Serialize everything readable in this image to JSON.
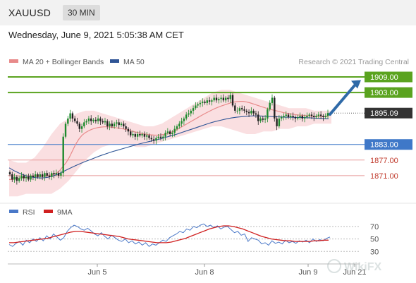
{
  "header": {
    "symbol": "XAUUSD",
    "timeframe": "30 MIN",
    "datetime": "Wednesday, June 9, 2021 5:05:38 AM CET"
  },
  "colors": {
    "ma20": "#e88a8a",
    "ma50": "#2f5596",
    "band_fill": "#f9d9dc",
    "resistance": "#5aa31f",
    "support": "#3f78c8",
    "minor_support": "#e89a9a",
    "arrow": "#2f6aa8",
    "rsi": "#4a78c8",
    "rsi_ma": "#d02020",
    "candle_up": "#1d8a2c",
    "candle_down": "#222222"
  },
  "chart_data": [
    {
      "type": "candlestick",
      "legend": [
        {
          "key": "ma20",
          "label": "MA 20 + Bollinger Bands"
        },
        {
          "key": "ma50",
          "label": "MA 50"
        }
      ],
      "source": "Research © 2021 Trading Central",
      "ylim": [
        1862,
        1912
      ],
      "current_price": {
        "label": "1895.09",
        "value": 1895.09
      },
      "levels": [
        {
          "label": "1909.00",
          "value": 1909.0,
          "kind": "resistance"
        },
        {
          "label": "1903.00",
          "value": 1903.0,
          "kind": "resistance"
        },
        {
          "label": "1883.00",
          "value": 1883.0,
          "kind": "support"
        },
        {
          "label": "1877.00",
          "value": 1877.0,
          "kind": "minor_support"
        },
        {
          "label": "1871.00",
          "value": 1871.0,
          "kind": "minor_support"
        }
      ],
      "close": [
        1871.5,
        1869.5,
        1870.5,
        1869.0,
        1870.0,
        1871.0,
        1870.0,
        1870.5,
        1869.5,
        1871.0,
        1870.5,
        1871.5,
        1870.5,
        1871.5,
        1870.5,
        1872.0,
        1871.0,
        1870.5,
        1872.0,
        1871.5,
        1872.0,
        1871.0,
        1872.0,
        1886.0,
        1891.0,
        1893.0,
        1895.0,
        1893.0,
        1892.0,
        1891.0,
        1889.0,
        1890.0,
        1891.5,
        1892.0,
        1893.0,
        1892.0,
        1892.5,
        1892.0,
        1893.0,
        1892.0,
        1891.5,
        1892.0,
        1890.0,
        1891.0,
        1890.0,
        1891.0,
        1891.5,
        1890.5,
        1891.0,
        1890.0,
        1889.0,
        1888.0,
        1886.5,
        1887.0,
        1886.0,
        1887.0,
        1886.5,
        1887.0,
        1886.0,
        1886.5,
        1885.5,
        1885.0,
        1884.5,
        1885.5,
        1886.0,
        1885.5,
        1886.0,
        1887.5,
        1888.0,
        1887.0,
        1887.5,
        1889.0,
        1890.0,
        1891.0,
        1892.0,
        1893.0,
        1894.5,
        1895.0,
        1896.0,
        1897.0,
        1898.0,
        1898.5,
        1899.0,
        1899.5,
        1899.0,
        1900.0,
        1899.5,
        1900.0,
        1901.0,
        1900.0,
        1900.5,
        1901.0,
        1900.0,
        1901.0,
        1900.5,
        1902.0,
        1898.0,
        1896.0,
        1896.0,
        1897.0,
        1896.5,
        1896.0,
        1895.5,
        1895.0,
        1896.0,
        1895.0,
        1894.5,
        1892.0,
        1893.0,
        1892.5,
        1893.0,
        1896.5,
        1899.0,
        1901.0,
        1893.0,
        1890.0,
        1893.0,
        1893.5,
        1894.0,
        1894.5,
        1893.5,
        1894.0,
        1893.5,
        1893.0,
        1893.5,
        1894.0,
        1893.0,
        1893.5,
        1894.0,
        1894.5,
        1894.0,
        1893.5,
        1894.0,
        1894.5,
        1894.0,
        1893.5,
        1894.0,
        1895.09
      ],
      "ma20": [
        1869.5,
        1869.5,
        1869.8,
        1870.0,
        1870.2,
        1870.3,
        1870.4,
        1870.5,
        1870.6,
        1870.7,
        1870.8,
        1870.9,
        1871.0,
        1871.2,
        1871.5,
        1872.0,
        1873.0,
        1874.5,
        1876.0,
        1878.0,
        1880.5,
        1883.0,
        1885.0,
        1886.5,
        1887.5,
        1888.2,
        1888.8,
        1889.2,
        1889.5,
        1889.7,
        1889.8,
        1889.8,
        1889.7,
        1889.6,
        1889.4,
        1889.2,
        1889.0,
        1888.7,
        1888.4,
        1888.1,
        1887.8,
        1887.5,
        1887.2,
        1887.0,
        1886.8,
        1886.7,
        1886.6,
        1886.6,
        1886.7,
        1886.9,
        1887.2,
        1887.6,
        1888.1,
        1888.7,
        1889.4,
        1890.1,
        1890.8,
        1891.5,
        1892.2,
        1892.9,
        1893.6,
        1894.3,
        1895.0,
        1895.6,
        1896.2,
        1896.8,
        1897.3,
        1897.8,
        1898.2,
        1898.6,
        1899.0,
        1899.3,
        1899.5,
        1899.6,
        1899.6,
        1899.4,
        1899.1,
        1898.7,
        1898.3,
        1897.9,
        1897.5,
        1897.1,
        1896.7,
        1896.4,
        1896.1,
        1895.8,
        1895.5,
        1895.2,
        1895.0,
        1894.8,
        1894.6,
        1894.4,
        1894.3,
        1894.2,
        1894.1,
        1894.0,
        1893.9,
        1893.8,
        1893.8,
        1893.8,
        1893.8,
        1893.9
      ],
      "ma50": [
        1874.0,
        1872.8,
        1871.8,
        1871.0,
        1870.5,
        1870.2,
        1870.1,
        1870.3,
        1870.8,
        1871.6,
        1872.6,
        1873.6,
        1874.6,
        1875.5,
        1876.4,
        1877.2,
        1878.0,
        1878.8,
        1879.5,
        1880.2,
        1880.8,
        1881.4,
        1882.0,
        1882.6,
        1883.2,
        1883.7,
        1884.2,
        1884.7,
        1885.2,
        1885.8,
        1886.4,
        1887.0,
        1887.7,
        1888.4,
        1889.1,
        1889.8,
        1890.5,
        1891.2,
        1891.8,
        1892.3,
        1892.8,
        1893.2,
        1893.5,
        1893.7,
        1893.9,
        1894.0,
        1894.0,
        1893.9,
        1893.8,
        1893.7,
        1893.6,
        1893.5,
        1893.5,
        1893.4,
        1893.4,
        1893.3,
        1893.2,
        1893.1,
        1893.0,
        1892.9
      ],
      "band_upper": [
        1877,
        1876,
        1876,
        1878,
        1882,
        1887,
        1891,
        1893,
        1895,
        1896,
        1896,
        1895,
        1894,
        1893,
        1892,
        1891,
        1890,
        1890,
        1891,
        1893,
        1895,
        1897,
        1899,
        1901,
        1903,
        1904,
        1904,
        1903,
        1902,
        1901,
        1900,
        1899,
        1898,
        1897,
        1897,
        1897,
        1896,
        1896,
        1896
      ],
      "band_lower": [
        1863,
        1863,
        1864,
        1864,
        1864,
        1864,
        1866,
        1869,
        1873,
        1877,
        1880,
        1882,
        1883,
        1883,
        1883,
        1882,
        1882,
        1883,
        1884,
        1885,
        1886,
        1887,
        1888,
        1889,
        1890,
        1890,
        1889,
        1888,
        1887,
        1887,
        1888,
        1888,
        1889,
        1889,
        1890,
        1890,
        1891,
        1891,
        1891
      ],
      "x_ticks": [
        "Jun 5",
        "Jun 8",
        "Jun 9",
        "Jun 21"
      ]
    },
    {
      "type": "line",
      "legend": [
        {
          "key": "rsi",
          "label": "RSI"
        },
        {
          "key": "rsi_ma",
          "label": "9MA"
        }
      ],
      "y_ticks": [
        "70",
        "50",
        "30"
      ],
      "ylim": [
        10,
        80
      ],
      "rsi": [
        41,
        38,
        43,
        46,
        40,
        48,
        44,
        50,
        46,
        52,
        47,
        55,
        50,
        58,
        53,
        48,
        52,
        62,
        68,
        72,
        70,
        66,
        64,
        67,
        63,
        58,
        55,
        60,
        54,
        50,
        56,
        52,
        48,
        46,
        50,
        44,
        47,
        42,
        45,
        40,
        44,
        38,
        42,
        40,
        44,
        48,
        46,
        52,
        55,
        58,
        62,
        60,
        66,
        64,
        70,
        68,
        72,
        74,
        70,
        72,
        68,
        71,
        66,
        69,
        70,
        65,
        60,
        62,
        56,
        58,
        46,
        52,
        50,
        48,
        42,
        44,
        40,
        47,
        43,
        45,
        42,
        48,
        44,
        46,
        43,
        47,
        45,
        48,
        44,
        50,
        46,
        49,
        47,
        51,
        53
      ],
      "rsi_ma": [
        44,
        44,
        45,
        46,
        47,
        48,
        49,
        50,
        51,
        53,
        55,
        57,
        59,
        61,
        62,
        62,
        61,
        60,
        59,
        58,
        57,
        56,
        55,
        54,
        52,
        50,
        49,
        48,
        47,
        46,
        45,
        44,
        44,
        44,
        45,
        47,
        49,
        51,
        54,
        57,
        60,
        63,
        66,
        68,
        70,
        71,
        71,
        70,
        68,
        66,
        63,
        60,
        57,
        54,
        52,
        50,
        49,
        48,
        47,
        47,
        46,
        46,
        46,
        46,
        47,
        47,
        48,
        48
      ]
    }
  ],
  "watermark": "WikiFX"
}
